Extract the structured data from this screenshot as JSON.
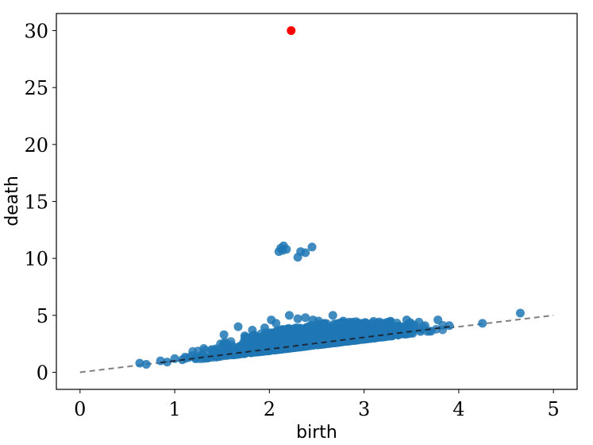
{
  "chart_data": {
    "type": "scatter",
    "title": "",
    "xlabel": "birth",
    "ylabel": "death",
    "xlim": [
      -0.25,
      5.25
    ],
    "ylim": [
      -1.5,
      31.5
    ],
    "xticks": [
      0,
      1,
      2,
      3,
      4,
      5
    ],
    "yticks": [
      0,
      5,
      10,
      15,
      20,
      25,
      30
    ],
    "grid": false,
    "legend": "none",
    "colors": {
      "points": "#1f77b4",
      "outlier": "#ff0000",
      "diagonal": "#808080",
      "trend": "#1a2a3a"
    },
    "diagonal_line": {
      "from": [
        0,
        0
      ],
      "to": [
        5,
        5
      ],
      "style": "dashed"
    },
    "trend_line": {
      "from": [
        0.85,
        0.85
      ],
      "to": [
        3.95,
        4.05
      ],
      "style": "dashed"
    },
    "cluster_points": [
      [
        2.12,
        10.9
      ],
      [
        2.15,
        11.1
      ],
      [
        2.1,
        10.6
      ],
      [
        2.18,
        10.8
      ],
      [
        2.3,
        10.1
      ],
      [
        2.33,
        10.6
      ],
      [
        2.38,
        10.5
      ],
      [
        2.45,
        11.0
      ],
      [
        2.14,
        10.7
      ]
    ],
    "high_points": [
      [
        1.52,
        3.3
      ],
      [
        1.67,
        4.0
      ],
      [
        1.82,
        3.7
      ],
      [
        2.02,
        4.6
      ],
      [
        2.07,
        4.3
      ],
      [
        2.21,
        5.0
      ],
      [
        2.3,
        4.7
      ],
      [
        2.38,
        4.8
      ],
      [
        2.46,
        4.6
      ],
      [
        2.52,
        4.5
      ],
      [
        2.67,
        5.0
      ],
      [
        2.78,
        4.5
      ],
      [
        2.95,
        4.3
      ],
      [
        3.05,
        4.2
      ],
      [
        3.24,
        4.2
      ],
      [
        3.45,
        4.6
      ],
      [
        3.58,
        4.4
      ],
      [
        3.78,
        4.6
      ],
      [
        3.9,
        4.1
      ],
      [
        4.25,
        4.3
      ],
      [
        4.65,
        5.2
      ],
      [
        1.74,
        3.2
      ],
      [
        1.95,
        3.9
      ],
      [
        2.58,
        4.3
      ],
      [
        2.88,
        4.4
      ]
    ],
    "low_points": [
      [
        0.63,
        0.8
      ],
      [
        0.7,
        0.7
      ],
      [
        0.85,
        1.0
      ],
      [
        0.92,
        0.9
      ],
      [
        1.0,
        1.2
      ],
      [
        1.08,
        1.1
      ],
      [
        1.15,
        1.3
      ],
      [
        1.22,
        1.2
      ],
      [
        1.3,
        1.5
      ],
      [
        1.4,
        1.5
      ]
    ],
    "outliers": [
      [
        2.23,
        30.0
      ]
    ],
    "dense_band": {
      "x_range": [
        0.95,
        3.95
      ],
      "death_offset_min": -0.1,
      "death_offset_max": 1.8,
      "count": 1500
    }
  }
}
